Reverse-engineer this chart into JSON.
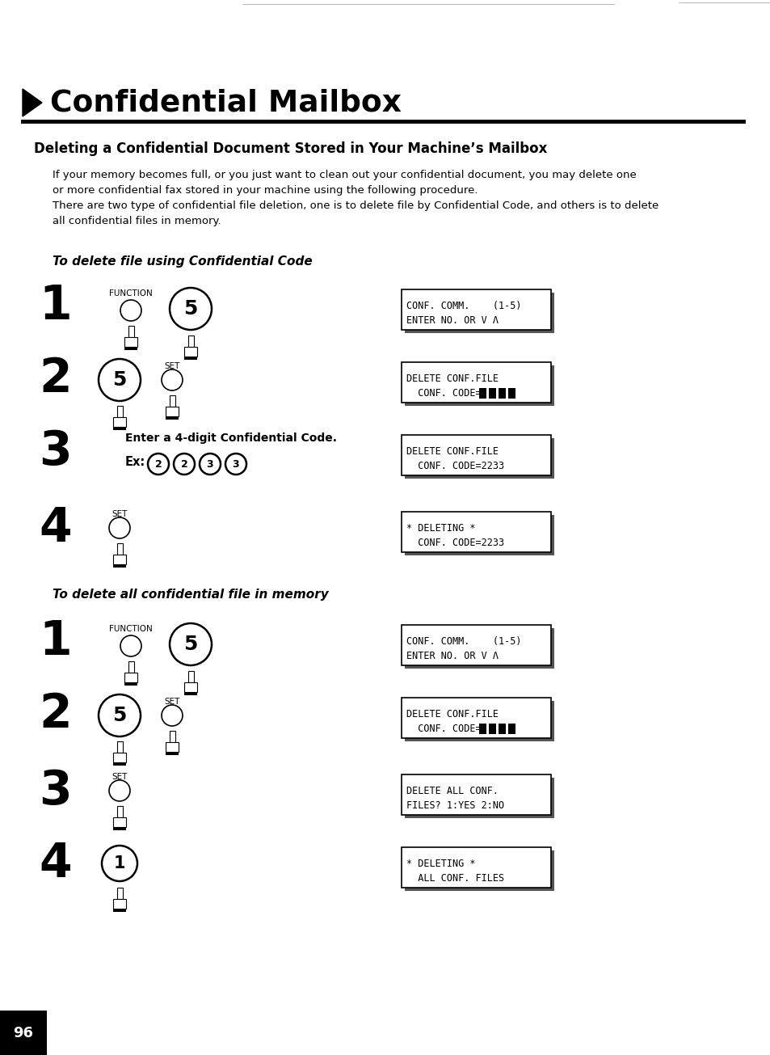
{
  "title": "Confidential Mailbox",
  "section_title": "Deleting a Confidential Document Stored in Your Machine’s Mailbox",
  "intro_text": "If your memory becomes full, or you just want to clean out your confidential document, you may delete one\nor more confidential fax stored in your machine using the following procedure.\nThere are two type of confidential file deletion, one is to delete file by Confidential Code, and others is to delete\nall confidential files in memory.",
  "section1_title": "To delete file using Confidential Code",
  "section2_title": "To delete all confidential file in memory",
  "bg_color": "#ffffff",
  "steps1": [
    {
      "num": "1",
      "display_line1": "CONF. COMM.    (1-5)",
      "display_line2": "ENTER NO. OR V Λ",
      "has_blocks": false
    },
    {
      "num": "2",
      "display_line1": "DELETE CONF.FILE",
      "display_line2": "  CONF. CODE= ",
      "has_blocks": true
    },
    {
      "num": "3",
      "display_line1": "DELETE CONF.FILE",
      "display_line2": "  CONF. CODE=2233",
      "has_blocks": false
    },
    {
      "num": "4",
      "display_line1": "* DELETING *",
      "display_line2": "  CONF. CODE=2233",
      "has_blocks": false
    }
  ],
  "steps2": [
    {
      "num": "1",
      "display_line1": "CONF. COMM.    (1-5)",
      "display_line2": "ENTER NO. OR V Λ",
      "has_blocks": false
    },
    {
      "num": "2",
      "display_line1": "DELETE CONF.FILE",
      "display_line2": "  CONF. CODE= ",
      "has_blocks": true
    },
    {
      "num": "3",
      "display_line1": "DELETE ALL CONF.",
      "display_line2": "FILES? 1:YES 2:NO",
      "has_blocks": false
    },
    {
      "num": "4",
      "display_line1": "* DELETING *",
      "display_line2": "  ALL CONF. FILES",
      "has_blocks": false
    }
  ],
  "page_num": "96"
}
